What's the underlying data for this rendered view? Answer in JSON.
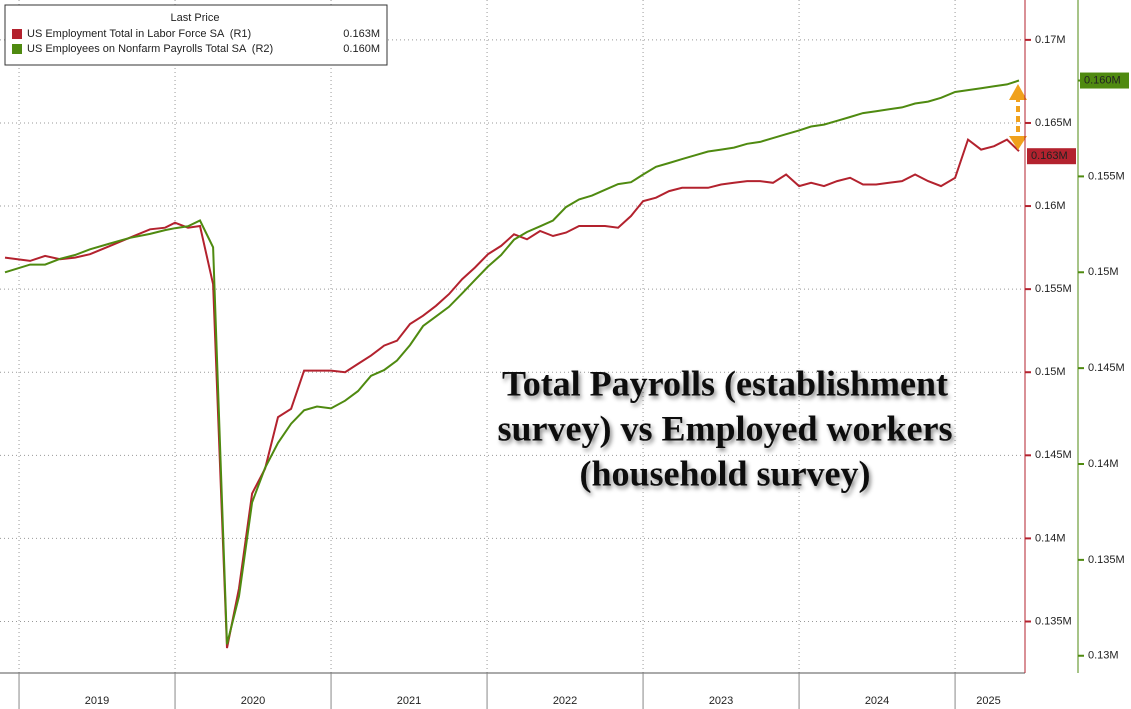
{
  "chart_data": {
    "type": "line",
    "legend_title": "Last Price",
    "annotation": [
      "Total Payrolls (establishment",
      "survey) vs Employed workers",
      "(household survey)"
    ],
    "x": [
      2018.91,
      2019.071,
      2019.167,
      2019.263,
      2019.359,
      2019.455,
      2019.583,
      2019.712,
      2019.84,
      2019.936,
      2020.0,
      2020.083,
      2020.16,
      2020.244,
      2020.333,
      2020.41,
      2020.494,
      2020.577,
      2020.66,
      2020.744,
      2020.827,
      2020.91,
      2021.0,
      2021.09,
      2021.173,
      2021.256,
      2021.34,
      2021.423,
      2021.506,
      2021.59,
      2021.673,
      2021.756,
      2021.84,
      2021.923,
      2022.006,
      2022.09,
      2022.173,
      2022.256,
      2022.34,
      2022.423,
      2022.506,
      2022.59,
      2022.673,
      2022.756,
      2022.84,
      2022.923,
      2023.0,
      2023.083,
      2023.167,
      2023.25,
      2023.333,
      2023.417,
      2023.5,
      2023.583,
      2023.667,
      2023.75,
      2023.833,
      2023.917,
      2024.0,
      2024.077,
      2024.16,
      2024.244,
      2024.327,
      2024.41,
      2024.494,
      2024.577,
      2024.66,
      2024.744,
      2024.827,
      2024.91,
      2025.0,
      2025.083,
      2025.167,
      2025.25,
      2025.333,
      2025.41
    ],
    "series": [
      {
        "name": "US Employment Total in Labor Force SA  (R1)",
        "color": "#b3222e",
        "last_value": 0.163,
        "last_value_label": "0.163M",
        "values": [
          0.1569,
          0.1567,
          0.157,
          0.1568,
          0.1569,
          0.1571,
          0.1576,
          0.1581,
          0.1586,
          0.1587,
          0.159,
          0.1587,
          0.1588,
          0.1553,
          0.1334,
          0.137,
          0.1427,
          0.1442,
          0.1473,
          0.1478,
          0.1501,
          0.1501,
          0.1501,
          0.15,
          0.1505,
          0.151,
          0.1516,
          0.1519,
          0.1529,
          0.1534,
          0.154,
          0.1547,
          0.1556,
          0.1563,
          0.1571,
          0.1576,
          0.1583,
          0.158,
          0.1585,
          0.1582,
          0.1584,
          0.1588,
          0.1588,
          0.1588,
          0.1587,
          0.1594,
          0.1603,
          0.1605,
          0.1609,
          0.1611,
          0.1611,
          0.1611,
          0.1613,
          0.1614,
          0.1615,
          0.1615,
          0.1614,
          0.1619,
          0.1612,
          0.1614,
          0.1612,
          0.1615,
          0.1617,
          0.1613,
          0.1613,
          0.1614,
          0.1615,
          0.1619,
          0.1615,
          0.1612,
          0.1617,
          0.164,
          0.1634,
          0.1636,
          0.164,
          0.1633
        ]
      },
      {
        "name": "US Employees on Nonfarm Payrolls Total SA  (R2)",
        "color": "#4f8a10",
        "axis": "y2",
        "last_value": 0.16,
        "last_value_label": "0.160M",
        "values": [
          0.15,
          0.1504,
          0.1504,
          0.1507,
          0.1509,
          0.1512,
          0.1515,
          0.1518,
          0.152,
          0.1522,
          0.1523,
          0.1524,
          0.1527,
          0.1513,
          0.1306,
          0.1331,
          0.138,
          0.1398,
          0.1411,
          0.1421,
          0.1428,
          0.143,
          0.1429,
          0.1433,
          0.1438,
          0.1446,
          0.1449,
          0.1454,
          0.1462,
          0.1472,
          0.1477,
          0.1482,
          0.1489,
          0.1496,
          0.1503,
          0.1509,
          0.1517,
          0.1521,
          0.1524,
          0.1527,
          0.1534,
          0.1538,
          0.154,
          0.1543,
          0.1546,
          0.1547,
          0.1551,
          0.1555,
          0.1557,
          0.1559,
          0.1561,
          0.1563,
          0.1564,
          0.1565,
          0.1567,
          0.1568,
          0.157,
          0.1572,
          0.1574,
          0.1576,
          0.1577,
          0.1579,
          0.1581,
          0.1583,
          0.1584,
          0.1585,
          0.1586,
          0.1588,
          0.1589,
          0.1591,
          0.1594,
          0.1595,
          0.1596,
          0.1597,
          0.1598,
          0.16
        ]
      }
    ],
    "xlim": [
      2018.878,
      2025.429
    ],
    "xticks": [
      2019,
      2020,
      2021,
      2022,
      2023,
      2024,
      2025
    ],
    "ylim": [
      0.1319,
      0.1724
    ],
    "yticks": [
      {
        "value": 0.135,
        "label": "0.135M"
      },
      {
        "value": 0.14,
        "label": "0.14M"
      },
      {
        "value": 0.145,
        "label": "0.145M"
      },
      {
        "value": 0.15,
        "label": "0.15M"
      },
      {
        "value": 0.155,
        "label": "0.155M"
      },
      {
        "value": 0.16,
        "label": "0.16M"
      },
      {
        "value": 0.165,
        "label": "0.165M"
      },
      {
        "value": 0.17,
        "label": "0.17M"
      }
    ],
    "y2lim": [
      0.1291,
      0.1642
    ],
    "y2ticks": [
      {
        "value": 0.13,
        "label": "0.13M"
      },
      {
        "value": 0.135,
        "label": "0.135M"
      },
      {
        "value": 0.14,
        "label": "0.14M"
      },
      {
        "value": 0.145,
        "label": "0.145M"
      },
      {
        "value": 0.15,
        "label": "0.15M"
      },
      {
        "value": 0.155,
        "label": "0.155M"
      },
      {
        "value": 0.16,
        "label": "0.16M"
      }
    ],
    "grid": true
  }
}
